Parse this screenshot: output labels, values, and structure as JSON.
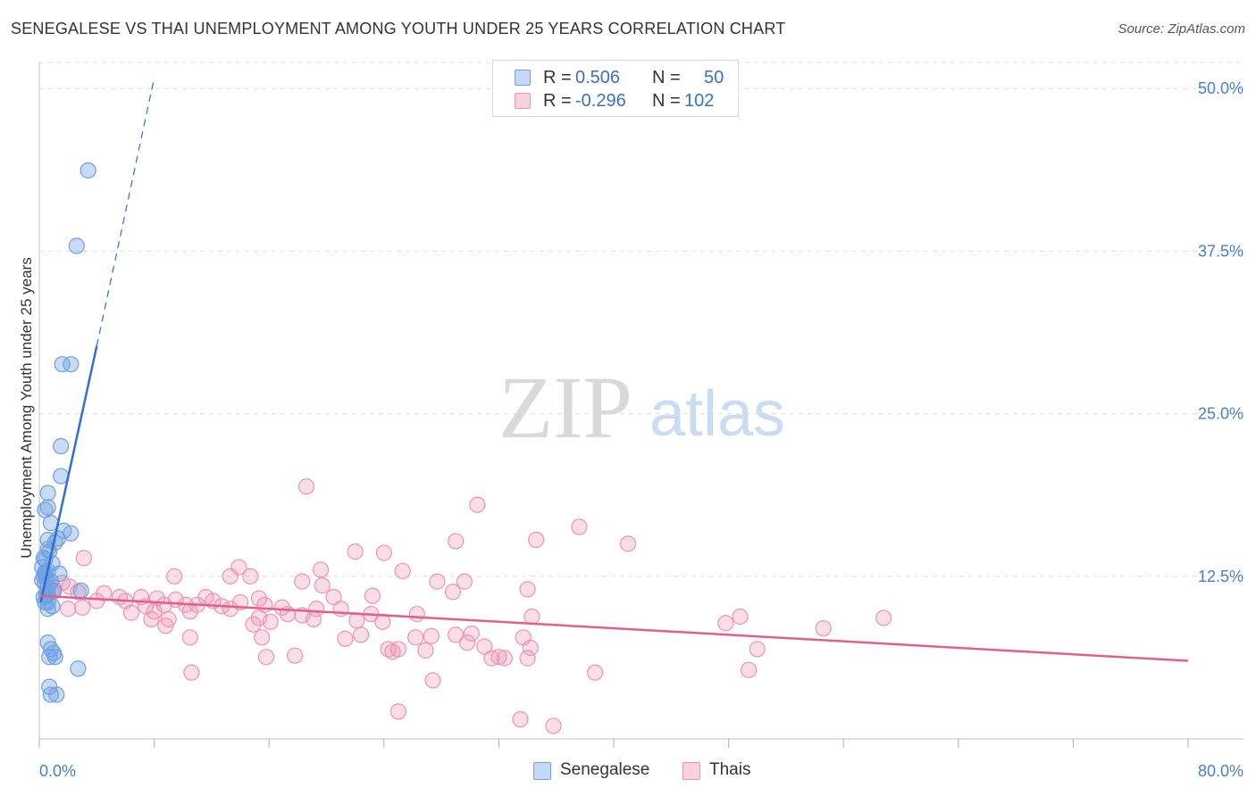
{
  "title": "SENEGALESE VS THAI UNEMPLOYMENT AMONG YOUTH UNDER 25 YEARS CORRELATION CHART",
  "source": "Source: ZipAtlas.com",
  "watermark": {
    "zip": "ZIP",
    "atlas": "atlas"
  },
  "colors": {
    "senegalese": "#6fa0e3",
    "senegalese_line": "#2f6fd0",
    "thais": "#ee94b0",
    "thais_line": "#e0608d",
    "grid": "#dcdcdc",
    "tick_text": "#4a7fc7"
  },
  "stats": {
    "rows": [
      {
        "r_label": "R =",
        "r_value": "0.506",
        "n_label": "N =",
        "n_value": "50"
      },
      {
        "r_label": "R =",
        "r_value": "-0.296",
        "n_label": "N =",
        "n_value": "102"
      }
    ]
  },
  "legend": {
    "items": [
      "Senegalese",
      "Thais"
    ]
  },
  "chart_data": {
    "type": "scatter",
    "title": "SENEGALESE VS THAI UNEMPLOYMENT AMONG YOUTH UNDER 25 YEARS CORRELATION CHART",
    "xlabel": "",
    "ylabel": "Unemployment Among Youth under 25 years",
    "xlim": [
      0,
      80
    ],
    "ylim": [
      0,
      52
    ],
    "x_tick_labels": [
      "0.0%",
      "80.0%"
    ],
    "y_ticks": [
      12.5,
      25.0,
      37.5,
      50.0
    ],
    "y_tick_labels": [
      "12.5%",
      "25.0%",
      "37.5%",
      "50.0%"
    ],
    "grid": true,
    "legend_position": "bottom-center",
    "series": [
      {
        "name": "Senegalese",
        "points": [
          [
            3.4,
            43.7
          ],
          [
            2.6,
            37.9
          ],
          [
            1.6,
            28.8
          ],
          [
            2.2,
            28.8
          ],
          [
            1.5,
            22.5
          ],
          [
            1.5,
            20.2
          ],
          [
            0.6,
            18.9
          ],
          [
            0.6,
            17.8
          ],
          [
            0.4,
            17.6
          ],
          [
            0.8,
            16.6
          ],
          [
            1.7,
            16.0
          ],
          [
            2.2,
            15.8
          ],
          [
            1.3,
            15.4
          ],
          [
            0.6,
            15.3
          ],
          [
            1.1,
            15.1
          ],
          [
            0.6,
            14.6
          ],
          [
            0.7,
            14.4
          ],
          [
            0.3,
            13.9
          ],
          [
            0.4,
            13.8
          ],
          [
            0.9,
            13.5
          ],
          [
            0.2,
            13.2
          ],
          [
            0.6,
            12.9
          ],
          [
            0.4,
            12.7
          ],
          [
            1.4,
            12.7
          ],
          [
            0.3,
            12.5
          ],
          [
            0.5,
            12.4
          ],
          [
            0.2,
            12.2
          ],
          [
            0.8,
            12.1
          ],
          [
            0.4,
            11.9
          ],
          [
            0.6,
            11.7
          ],
          [
            1.0,
            11.4
          ],
          [
            0.6,
            11.3
          ],
          [
            0.5,
            11.1
          ],
          [
            0.3,
            10.9
          ],
          [
            0.6,
            10.5
          ],
          [
            0.4,
            10.5
          ],
          [
            0.9,
            10.2
          ],
          [
            0.6,
            10.0
          ],
          [
            0.6,
            7.4
          ],
          [
            0.8,
            6.9
          ],
          [
            1.0,
            6.6
          ],
          [
            0.7,
            6.3
          ],
          [
            1.1,
            6.3
          ],
          [
            2.7,
            5.4
          ],
          [
            0.7,
            4.0
          ],
          [
            0.8,
            3.4
          ],
          [
            1.2,
            3.4
          ],
          [
            0.4,
            12.8
          ],
          [
            0.5,
            11.0
          ],
          [
            2.9,
            11.4
          ]
        ]
      },
      {
        "name": "Thais",
        "points": [
          [
            18.6,
            19.4
          ],
          [
            30.5,
            18.0
          ],
          [
            37.6,
            16.3
          ],
          [
            29.0,
            15.2
          ],
          [
            34.6,
            15.3
          ],
          [
            22.0,
            14.4
          ],
          [
            24.0,
            14.3
          ],
          [
            3.1,
            13.9
          ],
          [
            13.9,
            13.2
          ],
          [
            19.6,
            13.0
          ],
          [
            25.3,
            12.9
          ],
          [
            13.3,
            12.5
          ],
          [
            9.4,
            12.5
          ],
          [
            14.7,
            12.5
          ],
          [
            18.3,
            12.1
          ],
          [
            27.7,
            12.1
          ],
          [
            29.6,
            12.1
          ],
          [
            19.7,
            11.8
          ],
          [
            1.6,
            12.0
          ],
          [
            2.1,
            11.7
          ],
          [
            1.0,
            11.6
          ],
          [
            2.7,
            11.3
          ],
          [
            4.5,
            11.2
          ],
          [
            5.6,
            10.9
          ],
          [
            7.1,
            10.9
          ],
          [
            8.2,
            10.8
          ],
          [
            11.6,
            10.9
          ],
          [
            20.5,
            10.9
          ],
          [
            23.2,
            11.0
          ],
          [
            15.3,
            10.8
          ],
          [
            4.0,
            10.6
          ],
          [
            6.0,
            10.6
          ],
          [
            9.5,
            10.7
          ],
          [
            12.1,
            10.6
          ],
          [
            14.0,
            10.5
          ],
          [
            15.7,
            10.3
          ],
          [
            7.4,
            10.2
          ],
          [
            8.7,
            10.3
          ],
          [
            10.2,
            10.3
          ],
          [
            11.0,
            10.3
          ],
          [
            12.7,
            10.2
          ],
          [
            13.3,
            10.0
          ],
          [
            16.9,
            10.1
          ],
          [
            19.3,
            10.0
          ],
          [
            21.0,
            10.0
          ],
          [
            3.0,
            10.1
          ],
          [
            2.0,
            10.0
          ],
          [
            8.0,
            9.8
          ],
          [
            10.5,
            9.8
          ],
          [
            6.4,
            9.7
          ],
          [
            17.3,
            9.6
          ],
          [
            18.3,
            9.5
          ],
          [
            23.1,
            9.6
          ],
          [
            26.3,
            9.6
          ],
          [
            34.3,
            9.4
          ],
          [
            48.8,
            9.4
          ],
          [
            58.8,
            9.3
          ],
          [
            9.0,
            9.2
          ],
          [
            7.8,
            9.2
          ],
          [
            15.3,
            9.3
          ],
          [
            16.1,
            9.0
          ],
          [
            19.1,
            9.2
          ],
          [
            22.1,
            9.1
          ],
          [
            23.9,
            9.0
          ],
          [
            14.9,
            8.8
          ],
          [
            8.8,
            8.7
          ],
          [
            47.8,
            8.9
          ],
          [
            54.6,
            8.5
          ],
          [
            41.0,
            15.0
          ],
          [
            34.0,
            11.5
          ],
          [
            28.8,
            11.3
          ],
          [
            29.0,
            8.0
          ],
          [
            30.1,
            8.1
          ],
          [
            22.4,
            8.0
          ],
          [
            26.2,
            7.8
          ],
          [
            33.7,
            7.8
          ],
          [
            10.5,
            7.8
          ],
          [
            15.5,
            7.8
          ],
          [
            31.0,
            7.1
          ],
          [
            34.2,
            7.0
          ],
          [
            50.0,
            6.9
          ],
          [
            21.3,
            7.7
          ],
          [
            29.8,
            7.4
          ],
          [
            27.3,
            7.9
          ],
          [
            25.0,
            6.9
          ],
          [
            24.3,
            6.9
          ],
          [
            26.9,
            6.8
          ],
          [
            15.8,
            6.3
          ],
          [
            31.5,
            6.2
          ],
          [
            24.6,
            6.7
          ],
          [
            17.8,
            6.4
          ],
          [
            32.4,
            6.2
          ],
          [
            34.0,
            6.2
          ],
          [
            32.0,
            6.3
          ],
          [
            10.6,
            5.1
          ],
          [
            49.4,
            5.3
          ],
          [
            38.7,
            5.1
          ],
          [
            27.4,
            4.5
          ],
          [
            25.0,
            2.1
          ],
          [
            33.5,
            1.5
          ],
          [
            35.8,
            1.0
          ],
          [
            1.0,
            11.3
          ]
        ]
      }
    ],
    "trend_lines": [
      {
        "series": "Senegalese",
        "x": [
          0.1,
          4.0
        ],
        "y": [
          10.5,
          30.2
        ],
        "dashed_extension_to": [
          8.0,
          50.8
        ]
      },
      {
        "series": "Thais",
        "x": [
          0.1,
          80.0
        ],
        "y": [
          11.0,
          6.0
        ]
      }
    ]
  }
}
